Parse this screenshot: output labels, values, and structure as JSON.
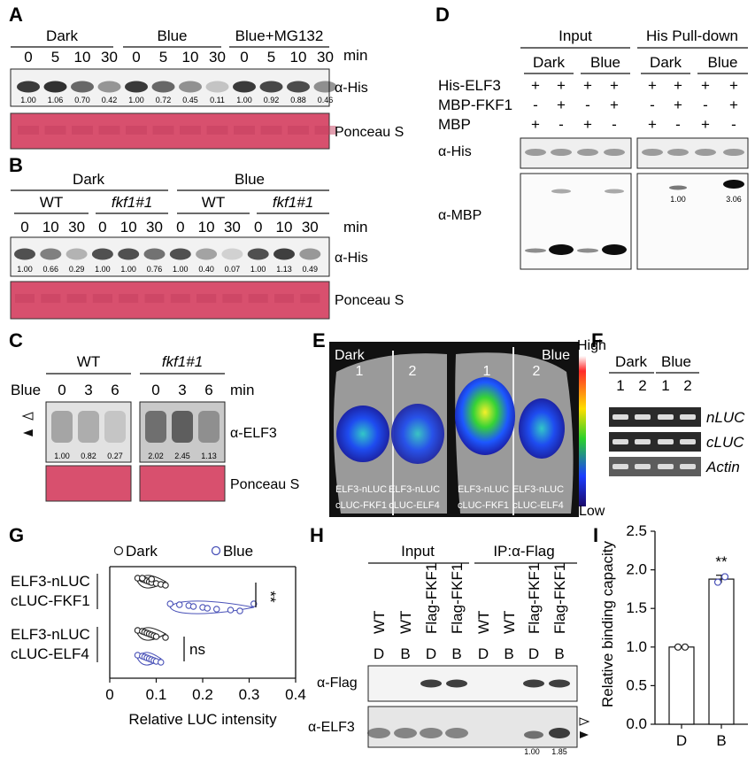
{
  "panels": {
    "a": {
      "letter": "A",
      "groups": [
        "Dark",
        "Blue",
        "Blue+MG132"
      ],
      "times": [
        "0",
        "5",
        "10",
        "30"
      ],
      "unit": "min",
      "blot_label": "α-His",
      "quant": [
        "1.00",
        "1.06",
        "0.70",
        "0.42",
        "1.00",
        "0.72",
        "0.45",
        "0.11",
        "1.00",
        "0.92",
        "0.88",
        "0.46"
      ],
      "loading_label": "Ponceau S"
    },
    "b": {
      "letter": "B",
      "conditions": [
        "Dark",
        "Blue"
      ],
      "genotypes": [
        "WT",
        "fkf1#1",
        "WT",
        "fkf1#1"
      ],
      "times": [
        "0",
        "10",
        "30"
      ],
      "unit": "min",
      "blot_label": "α-His",
      "quant": [
        "1.00",
        "0.66",
        "0.29",
        "1.00",
        "1.00",
        "0.76",
        "1.00",
        "0.40",
        "0.07",
        "1.00",
        "1.13",
        "0.49"
      ],
      "loading_label": "Ponceau S"
    },
    "c": {
      "letter": "C",
      "genotypes": [
        "WT",
        "fkf1#1"
      ],
      "row_label": "Blue",
      "times": [
        "0",
        "3",
        "6"
      ],
      "unit": "min",
      "blot_label": "α-ELF3",
      "quant": [
        "1.00",
        "0.82",
        "0.27",
        "2.02",
        "2.45",
        "1.13"
      ],
      "loading_label": "Ponceau S"
    },
    "d": {
      "letter": "D",
      "sections": [
        "Input",
        "His Pull-down"
      ],
      "conditions": [
        "Dark",
        "Blue",
        "Dark",
        "Blue"
      ],
      "rows": [
        {
          "label": "His-ELF3",
          "marks": [
            "+",
            "+",
            "+",
            "+",
            "+",
            "+",
            "+",
            "+"
          ]
        },
        {
          "label": "MBP-FKF1",
          "marks": [
            "-",
            "+",
            "-",
            "+",
            "-",
            "+",
            "-",
            "+"
          ]
        },
        {
          "label": "MBP",
          "marks": [
            "+",
            "-",
            "+",
            "-",
            "+",
            "-",
            "+",
            "-"
          ]
        }
      ],
      "blot_labels": [
        "α-His",
        "α-MBP"
      ],
      "quant": [
        "1.00",
        "3.06"
      ]
    },
    "e": {
      "letter": "E",
      "conditions": [
        "Dark",
        "Blue"
      ],
      "spot_numbers": [
        "1",
        "2",
        "1",
        "2"
      ],
      "spot_labels": [
        [
          "ELF3-nLUC",
          "cLUC-FKF1"
        ],
        [
          "ELF3-nLUC",
          "cLUC-ELF4"
        ],
        [
          "ELF3-nLUC",
          "cLUC-FKF1"
        ],
        [
          "ELF3-nLUC",
          "cLUC-ELF4"
        ]
      ],
      "scale_high": "High",
      "scale_low": "Low"
    },
    "f": {
      "letter": "F",
      "conditions": [
        "Dark",
        "Blue"
      ],
      "lanes": [
        "1",
        "2",
        "1",
        "2"
      ],
      "genes": [
        "nLUC",
        "cLUC",
        "Actin"
      ]
    },
    "g": {
      "letter": "G",
      "legend": [
        "Dark",
        "Blue"
      ],
      "pairs": [
        [
          "ELF3-nLUC",
          "cLUC-FKF1"
        ],
        [
          "ELF3-nLUC",
          "cLUC-ELF4"
        ]
      ],
      "significance": [
        "**",
        "ns"
      ],
      "xlabel": "Relative LUC intensity",
      "xticks": [
        "0",
        "0.1",
        "0.2",
        "0.3",
        "0.4"
      ]
    },
    "h": {
      "letter": "H",
      "sections": [
        "Input",
        "IP:α-Flag"
      ],
      "lanes": [
        "WT",
        "WT",
        "Flag-FKF1",
        "Flag-FKF1",
        "WT",
        "WT",
        "Flag-FKF1",
        "Flag-FKF1"
      ],
      "conditions": [
        "D",
        "B",
        "D",
        "B",
        "D",
        "B",
        "D",
        "B"
      ],
      "blot_labels": [
        "α-Flag",
        "α-ELF3"
      ],
      "quant": [
        "1.00",
        "1.85"
      ]
    },
    "i": {
      "letter": "I",
      "significance": "**"
    }
  },
  "colors": {
    "ponceau": "#d8506e",
    "dark_marker": "#222222",
    "blue_marker": "#4a52b8",
    "violin_fill": "#ffffff"
  },
  "chart_data": [
    {
      "type": "bar",
      "title": "",
      "categories": [
        "D",
        "B"
      ],
      "values": [
        1.0,
        1.88
      ],
      "points": [
        [
          1.0,
          1.0
        ],
        [
          1.84,
          1.91
        ]
      ],
      "error": [
        0,
        0.05
      ],
      "xlabel": "",
      "ylabel": "Relative binding capacity",
      "ylim": [
        0.0,
        2.5
      ],
      "yticks": [
        "0.0",
        "0.5",
        "1.0",
        "1.5",
        "2.0",
        "2.5"
      ],
      "significance": [
        "",
        "**"
      ],
      "grid": false
    },
    {
      "type": "scatter",
      "title": "",
      "xlabel": "Relative LUC intensity",
      "xlim": [
        0,
        0.4
      ],
      "legend": "top",
      "series": [
        {
          "name": "Dark",
          "group": "ELF3-nLUC cLUC-FKF1",
          "values": [
            0.06,
            0.07,
            0.075,
            0.08,
            0.085,
            0.09,
            0.1,
            0.11,
            0.12,
            0.07,
            0.09
          ]
        },
        {
          "name": "Blue",
          "group": "ELF3-nLUC cLUC-FKF1",
          "values": [
            0.13,
            0.15,
            0.17,
            0.18,
            0.2,
            0.21,
            0.23,
            0.26,
            0.28,
            0.31
          ]
        },
        {
          "name": "Dark",
          "group": "ELF3-nLUC cLUC-ELF4",
          "values": [
            0.06,
            0.07,
            0.075,
            0.08,
            0.085,
            0.09,
            0.095,
            0.1,
            0.12
          ]
        },
        {
          "name": "Blue",
          "group": "ELF3-nLUC cLUC-ELF4",
          "values": [
            0.06,
            0.07,
            0.075,
            0.08,
            0.085,
            0.09,
            0.095,
            0.1,
            0.11
          ]
        }
      ]
    }
  ]
}
